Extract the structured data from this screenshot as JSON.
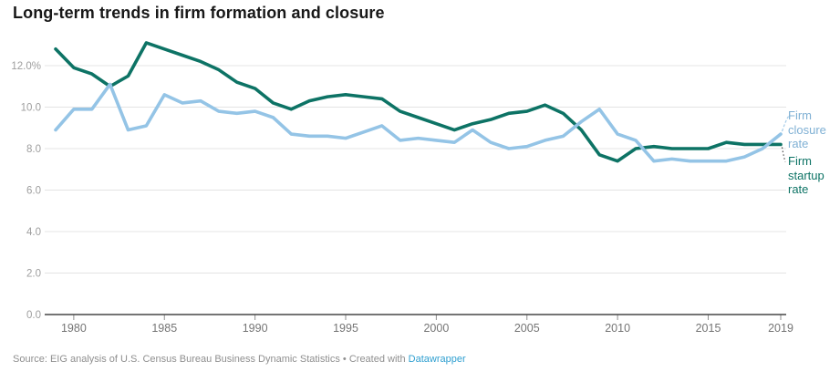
{
  "header": {
    "title": "Long-term trends in firm formation and closure"
  },
  "chart_data": {
    "type": "line",
    "title": "Long-term trends in firm formation and closure",
    "xlabel": "",
    "ylabel": "",
    "xlim": [
      1979,
      2019
    ],
    "ylim": [
      0,
      13.5
    ],
    "grid": "horizontal",
    "legend_position": "end-of-line-labels-right",
    "x": [
      1979,
      1980,
      1981,
      1982,
      1983,
      1984,
      1985,
      1986,
      1987,
      1988,
      1989,
      1990,
      1991,
      1992,
      1993,
      1994,
      1995,
      1996,
      1997,
      1998,
      1999,
      2000,
      2001,
      2002,
      2003,
      2004,
      2005,
      2006,
      2007,
      2008,
      2009,
      2010,
      2011,
      2012,
      2013,
      2014,
      2015,
      2016,
      2017,
      2018,
      2019
    ],
    "series": [
      {
        "name": "Firm startup rate",
        "color": "#0d7365",
        "values": [
          12.8,
          11.9,
          11.6,
          11.0,
          11.5,
          13.1,
          12.8,
          12.5,
          12.2,
          11.8,
          11.2,
          10.9,
          10.2,
          9.9,
          10.3,
          10.5,
          10.6,
          10.5,
          10.4,
          9.8,
          9.5,
          9.2,
          8.9,
          9.2,
          9.4,
          9.7,
          9.8,
          10.1,
          9.7,
          8.9,
          7.7,
          7.4,
          8.0,
          8.1,
          8.0,
          8.0,
          8.0,
          8.3,
          8.2,
          8.2,
          8.2
        ]
      },
      {
        "name": "Firm closure rate",
        "color": "#94c4e6",
        "values": [
          8.9,
          9.9,
          9.9,
          11.1,
          8.9,
          9.1,
          10.6,
          10.2,
          10.3,
          9.8,
          9.7,
          9.8,
          9.5,
          8.7,
          8.6,
          8.6,
          8.5,
          8.8,
          9.1,
          8.4,
          8.5,
          8.4,
          8.3,
          8.9,
          8.3,
          8.0,
          8.1,
          8.4,
          8.6,
          9.3,
          9.9,
          8.7,
          8.4,
          7.4,
          7.5,
          7.4,
          7.4,
          7.4,
          7.6,
          8.0,
          8.7
        ]
      }
    ],
    "xticks": {
      "values": [
        1980,
        1985,
        1990,
        1995,
        2000,
        2005,
        2010,
        2015,
        2019
      ],
      "labels": [
        "1980",
        "1985",
        "1990",
        "1995",
        "2000",
        "2005",
        "2010",
        "2015",
        "2019"
      ]
    },
    "yticks": {
      "values": [
        0,
        2,
        4,
        6,
        8,
        10,
        12
      ],
      "labels": [
        "0.0",
        "2.0",
        "4.0",
        "6.0",
        "8.0",
        "10.0",
        "12.0%"
      ]
    }
  },
  "footer": {
    "text": "Source: EIG analysis of U.S. Census Bureau Business Dynamic Statistics • Created with",
    "link_label": "Datawrapper"
  }
}
